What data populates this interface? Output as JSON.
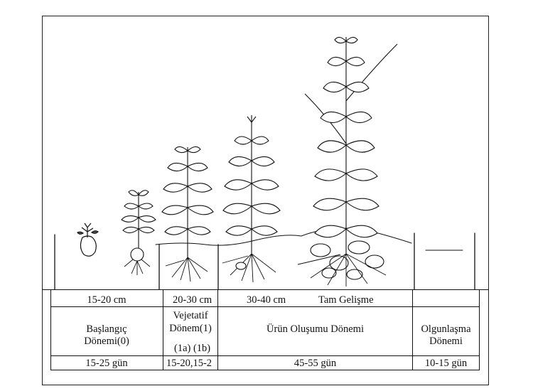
{
  "figure": {
    "height_labels": [
      "15-20 cm",
      "20-30 cm",
      "30-40 cm",
      "Tam Gelişme"
    ],
    "stages": [
      {
        "name_line1": "Başlangıç",
        "name_line2": "Dönemi(0)",
        "duration": "15-25 gün"
      },
      {
        "name_line1": "Vejetatif",
        "name_line2": "Dönem(1)",
        "sub": "(1a) (1b)",
        "duration": "15-20,15-2"
      },
      {
        "name": "Ürün Oluşumu Dönemi",
        "duration": "45-55 gün"
      },
      {
        "name_line1": "Olgunlaşma",
        "name_line2": "Dönemi",
        "duration": "10-15 gün"
      }
    ]
  }
}
